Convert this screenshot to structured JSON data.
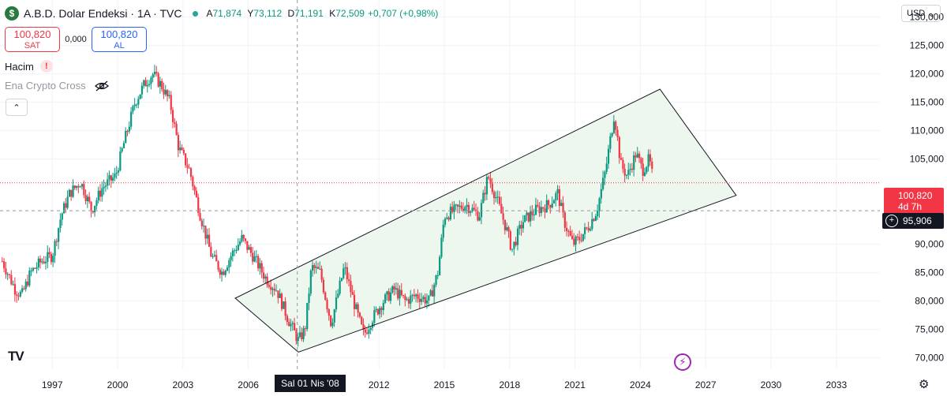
{
  "header": {
    "logo_glyph": "$",
    "title": "A.B.D. Dolar Endeksi · 1A · TVC",
    "ohlc": [
      {
        "key": "A",
        "value": "71,874"
      },
      {
        "key": "Y",
        "value": "73,112"
      },
      {
        "key": "D",
        "value": "71,191"
      },
      {
        "key": "K",
        "value": "72,509"
      }
    ],
    "change": "+0,707 (+0,98%)"
  },
  "trade": {
    "sell_price": "100,820",
    "sell_label": "SAT",
    "spread": "0,000",
    "buy_price": "100,820",
    "buy_label": "AL"
  },
  "indicators": {
    "volume_label": "Hacim",
    "volume_warning": "!",
    "crypto_label": "Ena Crypto Cross"
  },
  "currency_selector": "USD",
  "price_tag": {
    "price": "100,820",
    "countdown": "4d 7h"
  },
  "crosshair_price": "95,906",
  "crosshair_date": "Sal 01 Nis '08",
  "tv_logo": "TV",
  "chart_data": {
    "type": "candlestick",
    "yaxis": {
      "ticks": [
        "130,000",
        "125,000",
        "120,000",
        "115,000",
        "110,000",
        "105,000",
        "90,000",
        "85,000",
        "80,000",
        "75,000",
        "70,000"
      ],
      "ylim": [
        68,
        133
      ]
    },
    "xaxis": {
      "ticks": [
        "1997",
        "2000",
        "2003",
        "2006",
        "2012",
        "2015",
        "2018",
        "2021",
        "2024",
        "2027",
        "2030",
        "2033"
      ],
      "xlim": [
        1994.6,
        2035.0
      ]
    },
    "close_path": [
      [
        1994.7,
        87
      ],
      [
        1995.3,
        82
      ],
      [
        1995.6,
        81
      ],
      [
        1996.0,
        85
      ],
      [
        1996.5,
        87
      ],
      [
        1997.0,
        88
      ],
      [
        1997.4,
        95
      ],
      [
        1997.8,
        99
      ],
      [
        1998.3,
        101
      ],
      [
        1998.8,
        96
      ],
      [
        1999.3,
        100
      ],
      [
        1999.9,
        102
      ],
      [
        2000.3,
        108
      ],
      [
        2000.8,
        115
      ],
      [
        2001.2,
        118
      ],
      [
        2001.6,
        120
      ],
      [
        2002.0,
        118
      ],
      [
        2002.4,
        115
      ],
      [
        2002.8,
        107
      ],
      [
        2003.3,
        103
      ],
      [
        2003.8,
        95
      ],
      [
        2004.3,
        88
      ],
      [
        2004.8,
        85
      ],
      [
        2005.2,
        88
      ],
      [
        2005.7,
        91
      ],
      [
        2006.2,
        88
      ],
      [
        2006.8,
        84
      ],
      [
        2007.3,
        82
      ],
      [
        2007.8,
        77
      ],
      [
        2008.3,
        73
      ],
      [
        2008.6,
        75
      ],
      [
        2008.9,
        86
      ],
      [
        2009.3,
        85
      ],
      [
        2009.8,
        76
      ],
      [
        2010.4,
        86
      ],
      [
        2010.9,
        79
      ],
      [
        2011.3,
        74
      ],
      [
        2011.7,
        77
      ],
      [
        2012.2,
        80
      ],
      [
        2012.7,
        82
      ],
      [
        2013.2,
        80
      ],
      [
        2013.7,
        81
      ],
      [
        2014.3,
        80
      ],
      [
        2014.7,
        85
      ],
      [
        2015.0,
        95
      ],
      [
        2015.5,
        96
      ],
      [
        2016.0,
        97
      ],
      [
        2016.6,
        95
      ],
      [
        2017.0,
        102
      ],
      [
        2017.4,
        98
      ],
      [
        2017.9,
        92
      ],
      [
        2018.1,
        89
      ],
      [
        2018.6,
        94
      ],
      [
        2019.2,
        96
      ],
      [
        2019.8,
        97
      ],
      [
        2020.2,
        99
      ],
      [
        2020.5,
        94
      ],
      [
        2020.9,
        90
      ],
      [
        2021.2,
        91
      ],
      [
        2021.6,
        93
      ],
      [
        2022.0,
        96
      ],
      [
        2022.4,
        103
      ],
      [
        2022.8,
        113
      ],
      [
        2023.1,
        104
      ],
      [
        2023.4,
        102
      ],
      [
        2023.8,
        106
      ],
      [
        2024.1,
        103
      ],
      [
        2024.4,
        105
      ],
      [
        2024.6,
        101
      ]
    ],
    "channel": {
      "upper": [
        [
          2005.4,
          80.5
        ],
        [
          2024.9,
          117.3
        ],
        [
          2028.4,
          98.6
        ]
      ],
      "lower": [
        [
          2008.3,
          71.0
        ],
        [
          2028.4,
          98.6
        ]
      ]
    },
    "last_price": 100.82,
    "crosshair": {
      "x": 2008.25,
      "y": 95.906
    }
  }
}
